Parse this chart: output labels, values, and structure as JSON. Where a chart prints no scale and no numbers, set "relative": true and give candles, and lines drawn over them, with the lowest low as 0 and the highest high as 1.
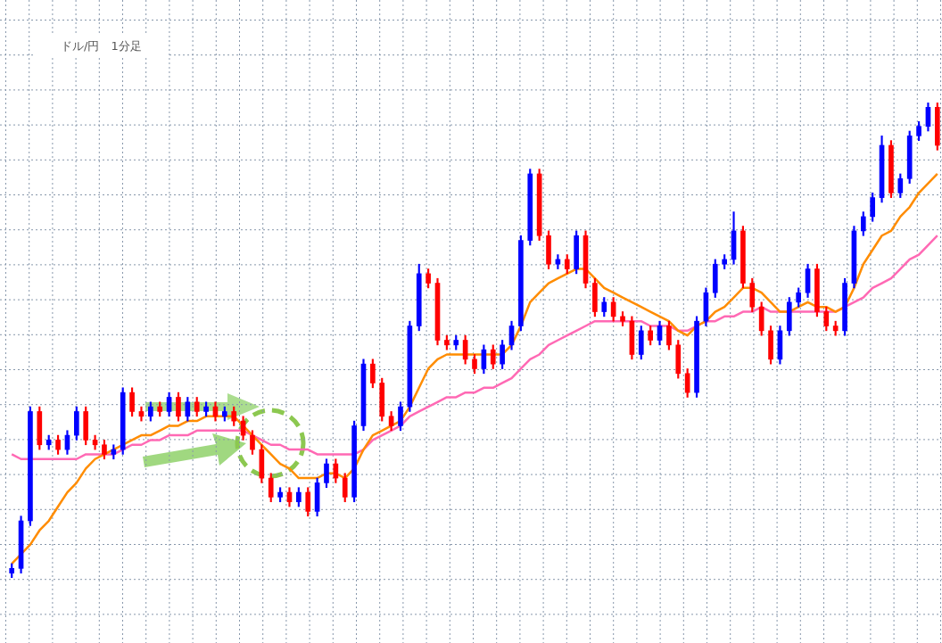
{
  "chart_data": {
    "type": "candlestick",
    "title": "ドル/円　1分足",
    "relative": true,
    "grid": true,
    "marker": "none",
    "categories": [
      null,
      null,
      null,
      null,
      null,
      null,
      null,
      null,
      null,
      null,
      null,
      null,
      null,
      null,
      null,
      null,
      null,
      null,
      null,
      null,
      null,
      null,
      null,
      null,
      null,
      null,
      null,
      null,
      null,
      null,
      null,
      null,
      null,
      null,
      null,
      null,
      null,
      null,
      null,
      null,
      null,
      null,
      null,
      null,
      null,
      null,
      null,
      null,
      null,
      null,
      null,
      null,
      null,
      null,
      null,
      null,
      null,
      null,
      null,
      null,
      null,
      null,
      null,
      null,
      null,
      null,
      null,
      null,
      null,
      null,
      null,
      null,
      null,
      null,
      null,
      null,
      null,
      null,
      null,
      null,
      null,
      null,
      null,
      null,
      null,
      null,
      null,
      null,
      null,
      null,
      null,
      null,
      null,
      null,
      null,
      null,
      null,
      null,
      null,
      null,
      null
    ],
    "ohlc": [
      [
        0.01,
        0.03,
        0,
        0.02
      ],
      [
        0.02,
        0.13,
        0.01,
        0.12
      ],
      [
        0.12,
        0.36,
        0.11,
        0.35
      ],
      [
        0.35,
        0.36,
        0.27,
        0.28
      ],
      [
        0.28,
        0.3,
        0.27,
        0.29
      ],
      [
        0.29,
        0.3,
        0.26,
        0.27
      ],
      [
        0.27,
        0.31,
        0.26,
        0.3
      ],
      [
        0.3,
        0.36,
        0.29,
        0.35
      ],
      [
        0.35,
        0.36,
        0.28,
        0.29
      ],
      [
        0.29,
        0.3,
        0.27,
        0.28
      ],
      [
        0.28,
        0.29,
        0.25,
        0.26
      ],
      [
        0.26,
        0.28,
        0.25,
        0.27
      ],
      [
        0.27,
        0.4,
        0.26,
        0.39
      ],
      [
        0.39,
        0.4,
        0.34,
        0.35
      ],
      [
        0.35,
        0.36,
        0.33,
        0.34
      ],
      [
        0.34,
        0.37,
        0.33,
        0.36
      ],
      [
        0.36,
        0.37,
        0.34,
        0.35
      ],
      [
        0.35,
        0.39,
        0.34,
        0.38
      ],
      [
        0.38,
        0.39,
        0.33,
        0.34
      ],
      [
        0.34,
        0.38,
        0.33,
        0.37
      ],
      [
        0.37,
        0.38,
        0.34,
        0.35
      ],
      [
        0.35,
        0.37,
        0.34,
        0.36
      ],
      [
        0.36,
        0.37,
        0.33,
        0.34
      ],
      [
        0.34,
        0.36,
        0.33,
        0.35
      ],
      [
        0.35,
        0.36,
        0.32,
        0.33
      ],
      [
        0.33,
        0.34,
        0.29,
        0.3
      ],
      [
        0.3,
        0.31,
        0.26,
        0.27
      ],
      [
        0.27,
        0.28,
        0.2,
        0.21
      ],
      [
        0.21,
        0.22,
        0.16,
        0.17
      ],
      [
        0.17,
        0.19,
        0.16,
        0.18
      ],
      [
        0.18,
        0.19,
        0.15,
        0.16
      ],
      [
        0.16,
        0.19,
        0.15,
        0.18
      ],
      [
        0.18,
        0.19,
        0.13,
        0.14
      ],
      [
        0.14,
        0.21,
        0.13,
        0.2
      ],
      [
        0.2,
        0.25,
        0.19,
        0.24
      ],
      [
        0.24,
        0.25,
        0.2,
        0.21
      ],
      [
        0.21,
        0.22,
        0.16,
        0.17
      ],
      [
        0.17,
        0.33,
        0.16,
        0.32
      ],
      [
        0.32,
        0.46,
        0.31,
        0.45
      ],
      [
        0.45,
        0.46,
        0.4,
        0.41
      ],
      [
        0.41,
        0.42,
        0.33,
        0.34
      ],
      [
        0.34,
        0.35,
        0.31,
        0.32
      ],
      [
        0.32,
        0.37,
        0.31,
        0.36
      ],
      [
        0.36,
        0.54,
        0.35,
        0.53
      ],
      [
        0.53,
        0.66,
        0.52,
        0.64
      ],
      [
        0.64,
        0.65,
        0.61,
        0.62
      ],
      [
        0.62,
        0.63,
        0.49,
        0.5
      ],
      [
        0.5,
        0.51,
        0.48,
        0.49
      ],
      [
        0.49,
        0.51,
        0.48,
        0.5
      ],
      [
        0.5,
        0.51,
        0.45,
        0.46
      ],
      [
        0.46,
        0.47,
        0.43,
        0.44
      ],
      [
        0.44,
        0.49,
        0.43,
        0.48
      ],
      [
        0.48,
        0.49,
        0.44,
        0.45
      ],
      [
        0.45,
        0.5,
        0.44,
        0.49
      ],
      [
        0.49,
        0.54,
        0.48,
        0.53
      ],
      [
        0.53,
        0.72,
        0.52,
        0.71
      ],
      [
        0.71,
        0.86,
        0.7,
        0.85
      ],
      [
        0.85,
        0.86,
        0.71,
        0.72
      ],
      [
        0.72,
        0.73,
        0.65,
        0.66
      ],
      [
        0.66,
        0.68,
        0.65,
        0.67
      ],
      [
        0.67,
        0.68,
        0.64,
        0.65
      ],
      [
        0.65,
        0.73,
        0.64,
        0.72
      ],
      [
        0.72,
        0.73,
        0.61,
        0.62
      ],
      [
        0.62,
        0.63,
        0.55,
        0.56
      ],
      [
        0.56,
        0.59,
        0.55,
        0.58
      ],
      [
        0.58,
        0.59,
        0.54,
        0.55
      ],
      [
        0.55,
        0.56,
        0.53,
        0.54
      ],
      [
        0.54,
        0.55,
        0.46,
        0.47
      ],
      [
        0.47,
        0.53,
        0.46,
        0.52
      ],
      [
        0.52,
        0.53,
        0.49,
        0.5
      ],
      [
        0.5,
        0.54,
        0.49,
        0.53
      ],
      [
        0.53,
        0.54,
        0.48,
        0.49
      ],
      [
        0.49,
        0.5,
        0.42,
        0.43
      ],
      [
        0.43,
        0.44,
        0.38,
        0.39
      ],
      [
        0.39,
        0.55,
        0.38,
        0.54
      ],
      [
        0.54,
        0.61,
        0.53,
        0.6
      ],
      [
        0.6,
        0.67,
        0.59,
        0.66
      ],
      [
        0.66,
        0.68,
        0.65,
        0.67
      ],
      [
        0.67,
        0.77,
        0.66,
        0.73
      ],
      [
        0.73,
        0.74,
        0.61,
        0.62
      ],
      [
        0.62,
        0.63,
        0.56,
        0.57
      ],
      [
        0.57,
        0.58,
        0.51,
        0.52
      ],
      [
        0.52,
        0.53,
        0.45,
        0.46
      ],
      [
        0.46,
        0.53,
        0.45,
        0.52
      ],
      [
        0.52,
        0.59,
        0.51,
        0.58
      ],
      [
        0.58,
        0.61,
        0.57,
        0.6
      ],
      [
        0.6,
        0.66,
        0.59,
        0.65
      ],
      [
        0.65,
        0.66,
        0.55,
        0.56
      ],
      [
        0.56,
        0.57,
        0.52,
        0.53
      ],
      [
        0.53,
        0.54,
        0.51,
        0.52
      ],
      [
        0.52,
        0.63,
        0.51,
        0.62
      ],
      [
        0.62,
        0.74,
        0.61,
        0.73
      ],
      [
        0.73,
        0.77,
        0.72,
        0.76
      ],
      [
        0.76,
        0.81,
        0.75,
        0.8
      ],
      [
        0.8,
        0.93,
        0.79,
        0.91
      ],
      [
        0.91,
        0.92,
        0.8,
        0.81
      ],
      [
        0.81,
        0.85,
        0.8,
        0.84
      ],
      [
        0.84,
        0.94,
        0.83,
        0.93
      ],
      [
        0.93,
        0.96,
        0.92,
        0.95
      ],
      [
        0.95,
        1.0,
        0.94,
        0.99
      ],
      [
        0.99,
        1.0,
        0.9,
        0.91
      ]
    ],
    "colors": [
      "#0000ff",
      "#0000ff",
      "#0000ff",
      "#ff0000",
      "#0000ff",
      "#ff0000",
      "#0000ff",
      "#0000ff",
      "#ff0000",
      "#ff0000",
      "#ff0000",
      "#0000ff",
      "#0000ff",
      "#ff0000",
      "#ff0000",
      "#0000ff",
      "#ff0000",
      "#0000ff",
      "#ff0000",
      "#0000ff",
      "#ff0000",
      "#0000ff",
      "#ff0000",
      "#0000ff",
      "#ff0000",
      "#ff0000",
      "#ff0000",
      "#ff0000",
      "#ff0000",
      "#0000ff",
      "#ff0000",
      "#0000ff",
      "#ff0000",
      "#0000ff",
      "#0000ff",
      "#ff0000",
      "#ff0000",
      "#0000ff",
      "#0000ff",
      "#ff0000",
      "#ff0000",
      "#ff0000",
      "#0000ff",
      "#0000ff",
      "#0000ff",
      "#ff0000",
      "#ff0000",
      "#ff0000",
      "#0000ff",
      "#ff0000",
      "#ff0000",
      "#0000ff",
      "#ff0000",
      "#0000ff",
      "#0000ff",
      "#0000ff",
      "#0000ff",
      "#ff0000",
      "#ff0000",
      "#0000ff",
      "#ff0000",
      "#0000ff",
      "#ff0000",
      "#ff0000",
      "#0000ff",
      "#ff0000",
      "#ff0000",
      "#ff0000",
      "#0000ff",
      "#ff0000",
      "#0000ff",
      "#ff0000",
      "#ff0000",
      "#ff0000",
      "#0000ff",
      "#0000ff",
      "#0000ff",
      "#0000ff",
      "#0000ff",
      "#ff0000",
      "#ff0000",
      "#ff0000",
      "#ff0000",
      "#0000ff",
      "#0000ff",
      "#0000ff",
      "#0000ff",
      "#ff0000",
      "#ff0000",
      "#ff0000",
      "#0000ff",
      "#0000ff",
      "#0000ff",
      "#0000ff",
      "#0000ff",
      "#ff0000",
      "#0000ff",
      "#0000ff",
      "#0000ff",
      "#0000ff",
      "#ff0000"
    ],
    "series": [
      {
        "type": "line",
        "color": "#ff8c00",
        "values": [
          0.03,
          0.05,
          0.07,
          0.1,
          0.12,
          0.15,
          0.18,
          0.2,
          0.23,
          0.25,
          0.26,
          0.27,
          0.28,
          0.29,
          0.3,
          0.3,
          0.31,
          0.32,
          0.32,
          0.33,
          0.33,
          0.34,
          0.34,
          0.34,
          0.34,
          0.32,
          0.3,
          0.28,
          0.26,
          0.24,
          0.23,
          0.21,
          0.21,
          0.21,
          0.22,
          0.22,
          0.21,
          0.23,
          0.27,
          0.3,
          0.31,
          0.32,
          0.33,
          0.36,
          0.4,
          0.44,
          0.46,
          0.47,
          0.47,
          0.47,
          0.47,
          0.47,
          0.47,
          0.47,
          0.49,
          0.53,
          0.58,
          0.6,
          0.62,
          0.63,
          0.64,
          0.65,
          0.65,
          0.63,
          0.61,
          0.6,
          0.59,
          0.58,
          0.57,
          0.56,
          0.55,
          0.54,
          0.52,
          0.51,
          0.53,
          0.54,
          0.56,
          0.57,
          0.59,
          0.61,
          0.61,
          0.6,
          0.58,
          0.56,
          0.56,
          0.57,
          0.58,
          0.57,
          0.57,
          0.56,
          0.57,
          0.61,
          0.66,
          0.69,
          0.72,
          0.73,
          0.76,
          0.78,
          0.81,
          0.83,
          0.85
        ]
      },
      {
        "type": "line",
        "color": "#ff69b4",
        "values": [
          0.26,
          0.25,
          0.25,
          0.25,
          0.25,
          0.25,
          0.25,
          0.25,
          0.26,
          0.26,
          0.26,
          0.26,
          0.27,
          0.28,
          0.28,
          0.29,
          0.29,
          0.3,
          0.3,
          0.3,
          0.31,
          0.31,
          0.31,
          0.31,
          0.31,
          0.31,
          0.3,
          0.29,
          0.28,
          0.28,
          0.27,
          0.27,
          0.27,
          0.26,
          0.26,
          0.26,
          0.26,
          0.26,
          0.27,
          0.29,
          0.3,
          0.31,
          0.32,
          0.34,
          0.35,
          0.36,
          0.37,
          0.38,
          0.38,
          0.39,
          0.39,
          0.4,
          0.4,
          0.41,
          0.42,
          0.44,
          0.46,
          0.47,
          0.49,
          0.5,
          0.51,
          0.52,
          0.53,
          0.54,
          0.54,
          0.54,
          0.54,
          0.54,
          0.54,
          0.53,
          0.53,
          0.53,
          0.52,
          0.52,
          0.53,
          0.54,
          0.54,
          0.55,
          0.55,
          0.56,
          0.56,
          0.57,
          0.56,
          0.56,
          0.56,
          0.56,
          0.56,
          0.56,
          0.56,
          0.56,
          0.57,
          0.58,
          0.59,
          0.61,
          0.62,
          0.63,
          0.65,
          0.67,
          0.68,
          0.7,
          0.72
        ]
      }
    ]
  }
}
